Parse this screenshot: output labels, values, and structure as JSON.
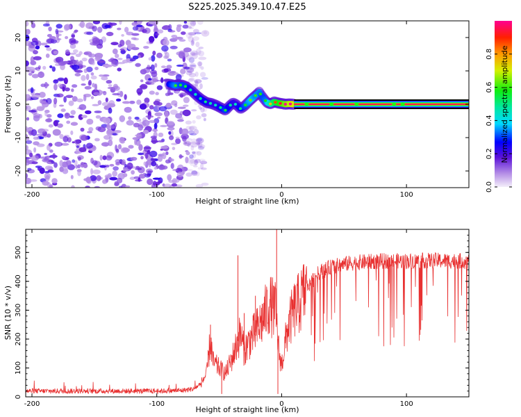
{
  "title": "S225.2025.349.10.47.E25",
  "chart_data": [
    {
      "type": "heatmap",
      "title": "S225.2025.349.10.47.E25",
      "xlabel": "Height of straight line (km)",
      "ylabel": "Frequency (Hz)",
      "xlim": [
        -205,
        150
      ],
      "ylim": [
        -25,
        25
      ],
      "xticks": [
        -200,
        -100,
        0,
        100
      ],
      "yticks": [
        -20,
        -10,
        0,
        10,
        20
      ],
      "noise_region_x": [
        -205,
        -75
      ],
      "signal_track": {
        "x": [
          -90,
          -85,
          -80,
          -76,
          -72,
          -68,
          -64,
          -60,
          -56,
          -52,
          -48,
          -45,
          -42,
          -39,
          -36,
          -33,
          -30,
          -27,
          -24,
          -21,
          -18,
          -15,
          -12,
          -9,
          -6,
          -3,
          0,
          3,
          6,
          10,
          20,
          40,
          60,
          80,
          100,
          150
        ],
        "y": [
          6.0,
          5.6,
          5.8,
          5.2,
          4.0,
          2.6,
          1.4,
          0.5,
          0.2,
          -0.4,
          -1.2,
          -1.8,
          -0.6,
          0.4,
          -0.2,
          -1.3,
          -0.6,
          0.5,
          1.6,
          2.6,
          3.6,
          2.0,
          0.6,
          0.1,
          0.7,
          0.4,
          0.2,
          0.0,
          0.1,
          0.0,
          0.0,
          0.0,
          0.0,
          0.0,
          0.0,
          0.0
        ],
        "amplitude": [
          0.35,
          0.45,
          0.4,
          0.4,
          0.3,
          0.3,
          0.35,
          0.35,
          0.3,
          0.3,
          0.35,
          0.4,
          0.35,
          0.3,
          0.3,
          0.35,
          0.4,
          0.45,
          0.5,
          0.45,
          0.45,
          0.4,
          0.45,
          0.6,
          0.7,
          0.75,
          0.8,
          0.85,
          0.9,
          0.95,
          1.0,
          1.0,
          1.0,
          1.0,
          1.0,
          1.0
        ]
      },
      "colorbar": {
        "label": "Normalized spectral amplitude",
        "range": [
          0.0,
          1.0
        ],
        "ticks": [
          0.0,
          0.2,
          0.4,
          0.6,
          0.8
        ]
      }
    },
    {
      "type": "line",
      "xlabel": "Height of straight line (km)",
      "ylabel": "SNR (10 * v/v)",
      "xlim": [
        -205,
        150
      ],
      "ylim": [
        0,
        580
      ],
      "xticks": [
        -200,
        -100,
        0,
        100
      ],
      "yticks": [
        0,
        100,
        200,
        300,
        400,
        500
      ],
      "series": [
        {
          "name": "SNR",
          "color": "#e83030",
          "envelope": {
            "x": [
              -205,
              -150,
              -100,
              -80,
              -70,
              -65,
              -60,
              -57,
              -55,
              -50,
              -45,
              -40,
              -36,
              -33,
              -30,
              -25,
              -20,
              -15,
              -10,
              -5,
              -2,
              0,
              5,
              10,
              15,
              20,
              30,
              40,
              50,
              60,
              80,
              100,
              120,
              150
            ],
            "y": [
              20,
              20,
              20,
              22,
              28,
              45,
              80,
              200,
              120,
              100,
              80,
              130,
              180,
              220,
              160,
              200,
              230,
              270,
              320,
              300,
              150,
              110,
              240,
              300,
              330,
              380,
              430,
              450,
              460,
              465,
              470,
              470,
              472,
              470
            ]
          },
          "spikes": [
            {
              "x": -57,
              "y": 250
            },
            {
              "x": -48,
              "y": 10
            },
            {
              "x": -35,
              "y": 490
            },
            {
              "x": -30,
              "y": 290
            },
            {
              "x": -21,
              "y": 350
            },
            {
              "x": -4,
              "y": 580
            },
            {
              "x": -3,
              "y": 10
            }
          ]
        }
      ]
    }
  ]
}
